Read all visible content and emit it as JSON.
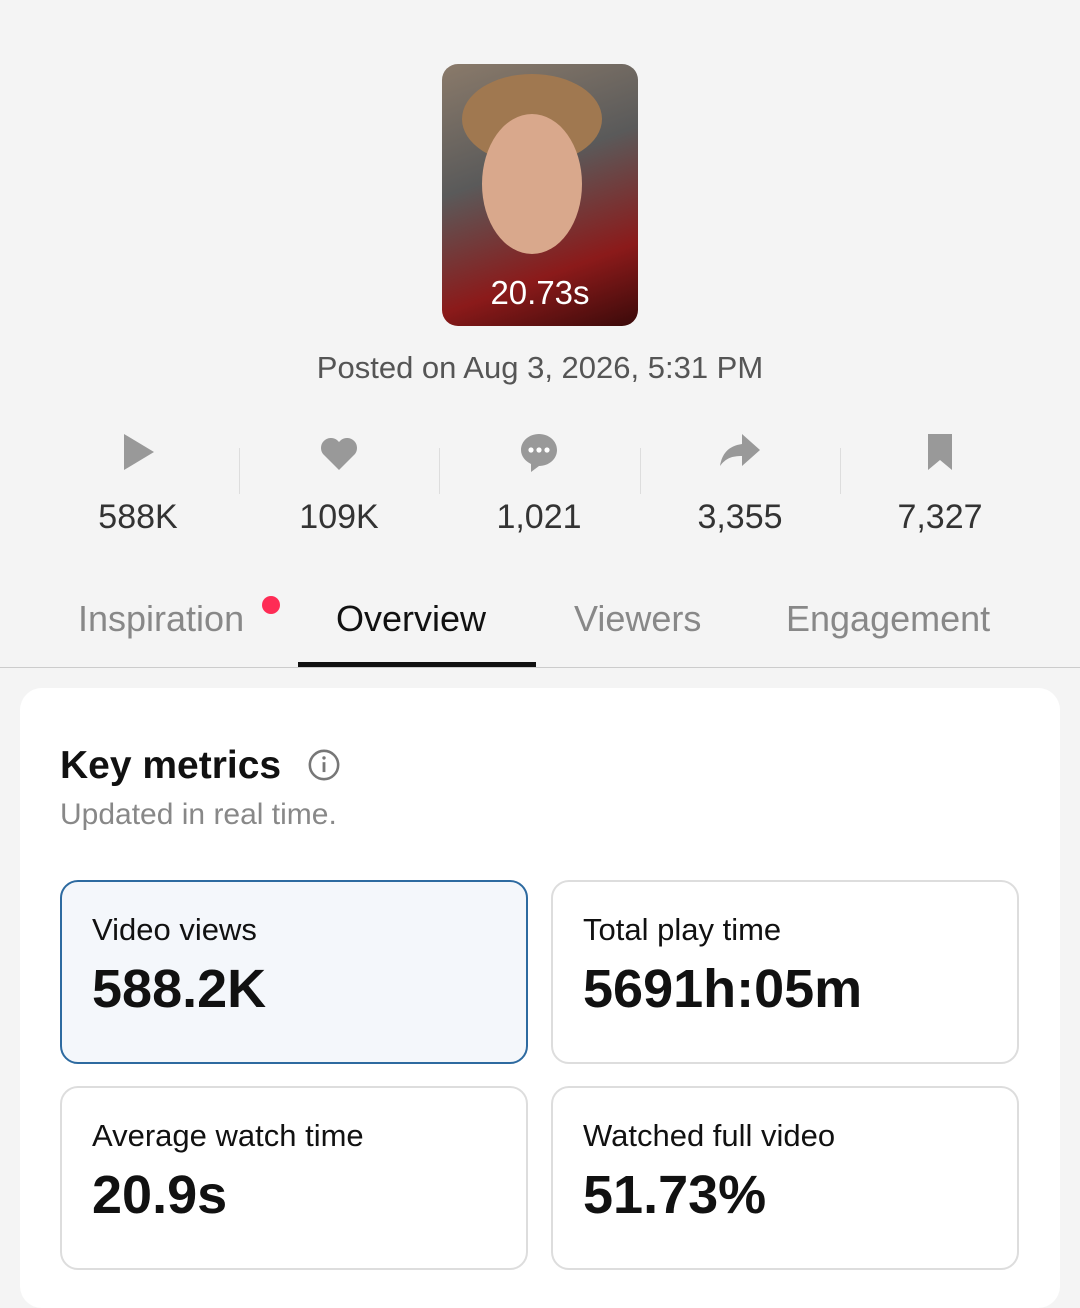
{
  "video": {
    "duration": "20.73s",
    "posted": "Posted on Aug 3, 2026, 5:31 PM"
  },
  "stats": [
    "588K",
    "109K",
    "1,021",
    "3,355",
    "7,327"
  ],
  "tabs": [
    "Inspiration",
    "Overview",
    "Viewers",
    "Engagement"
  ],
  "key_metrics": {
    "title": "Key metrics",
    "subtitle": "Updated in real time.",
    "metrics": [
      {
        "label": "Video views",
        "value": "588.2K"
      },
      {
        "label": "Total play time",
        "value": "5691h:05m"
      },
      {
        "label": "Average watch time",
        "value": "20.9s"
      },
      {
        "label": "Watched full video",
        "value": "51.73%"
      }
    ]
  }
}
